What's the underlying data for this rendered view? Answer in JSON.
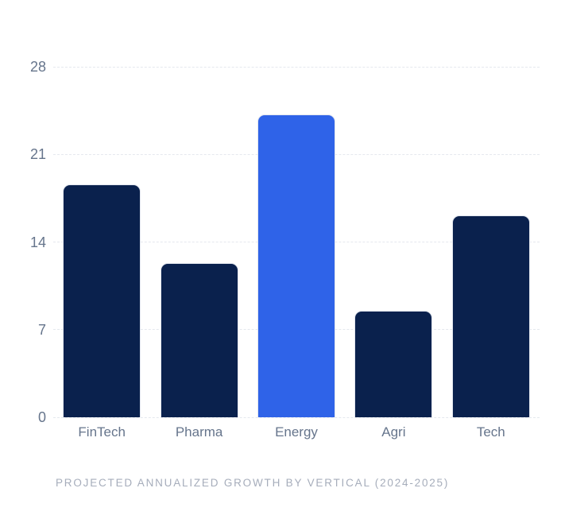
{
  "chart_data": {
    "type": "bar",
    "title": "",
    "caption": "PROJECTED ANNUALIZED GROWTH BY VERTICAL (2024-2025)",
    "categories": [
      "FinTech",
      "Pharma",
      "Energy",
      "Agri",
      "Tech"
    ],
    "values": [
      18.6,
      12.3,
      24.2,
      8.5,
      16.1
    ],
    "highlighted_category": "Energy",
    "xlabel": "",
    "ylabel": "",
    "y_ticks": [
      0,
      7,
      14,
      21,
      28
    ],
    "ylim": [
      0,
      28
    ],
    "grid": "horizontal-dashed",
    "legend": "none",
    "colors": {
      "bar": "#0a214d",
      "bar_highlight": "#2f63e8",
      "axis_label": "#66758c",
      "caption": "#a6adbb",
      "gridline": "#e5e8ee",
      "background": "#ffffff"
    }
  }
}
